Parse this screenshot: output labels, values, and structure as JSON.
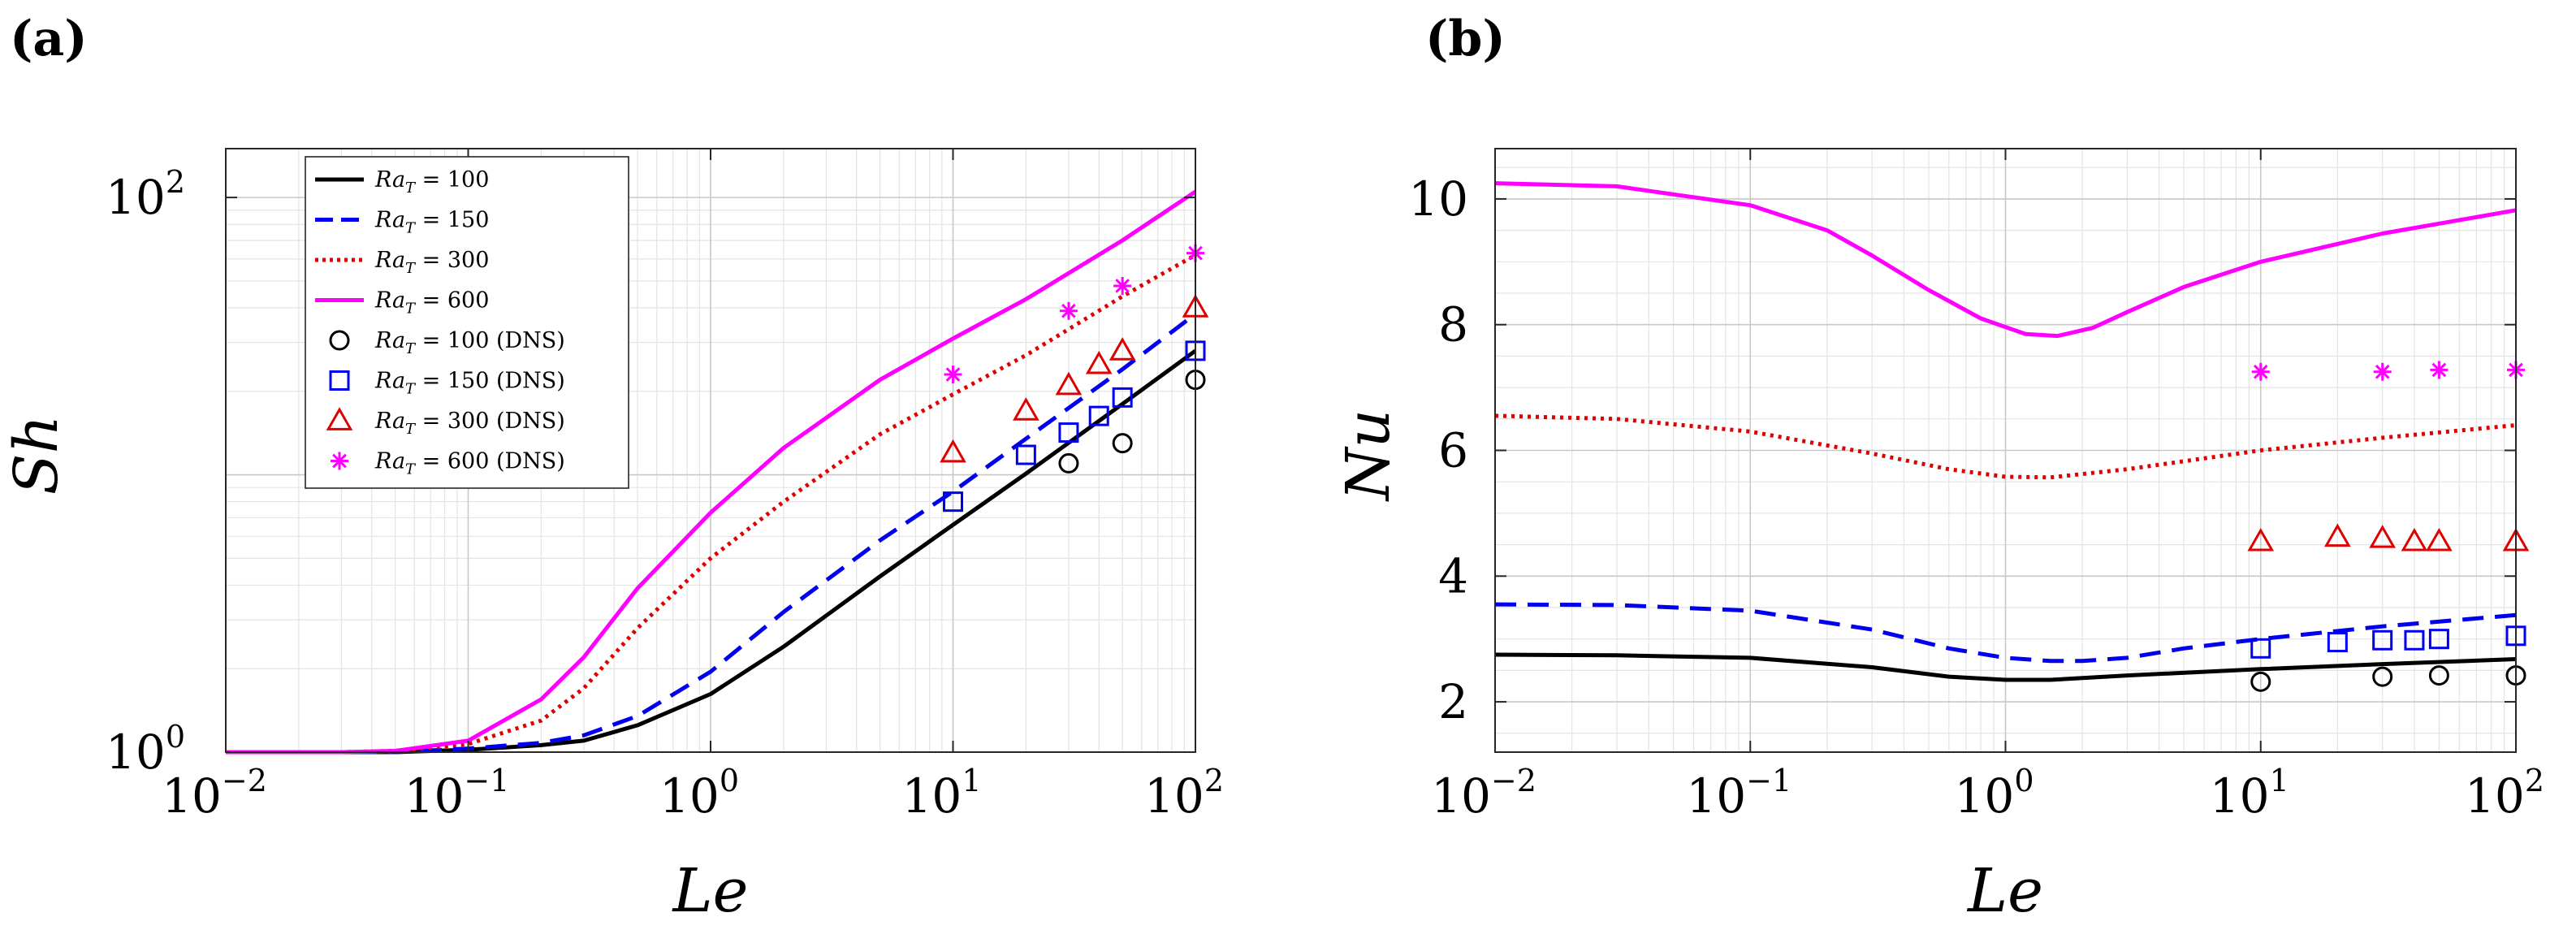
{
  "panels": {
    "a": {
      "label": "(a)"
    },
    "b": {
      "label": "(b)"
    }
  },
  "chart_data": [
    {
      "id": "a",
      "type": "line",
      "xscale": "log",
      "yscale": "log",
      "xlabel": "Le",
      "ylabel": "Sh",
      "xlim": [
        0.01,
        100
      ],
      "ylim": [
        1,
        150
      ],
      "xticks": [
        0.01,
        0.1,
        1,
        10,
        100
      ],
      "xtick_labels": [
        [
          "10",
          "−2"
        ],
        [
          "10",
          "−1"
        ],
        [
          "10",
          "0"
        ],
        [
          "10",
          "1"
        ],
        [
          "10",
          "2"
        ]
      ],
      "yticks": [
        1,
        100
      ],
      "ytick_labels": [
        [
          "10",
          "0"
        ],
        [
          "10",
          "2"
        ]
      ],
      "grid": true,
      "legend_position": "top-left",
      "series": [
        {
          "name": "Ra_T = 100",
          "legend_var": "Ra",
          "legend_sub": "T",
          "legend_rest": " = 100",
          "kind": "line",
          "style": "solid",
          "color": "#000000",
          "x": [
            0.01,
            0.03,
            0.05,
            0.1,
            0.2,
            0.3,
            0.5,
            1,
            2,
            5,
            10,
            20,
            50,
            100
          ],
          "y": [
            1.0,
            1.0,
            1.0,
            1.02,
            1.06,
            1.1,
            1.25,
            1.62,
            2.4,
            4.3,
            6.6,
            10.1,
            18.0,
            28.0
          ]
        },
        {
          "name": "Ra_T = 150",
          "legend_var": "Ra",
          "legend_sub": "T",
          "legend_rest": " = 150",
          "kind": "line",
          "style": "dashed",
          "color": "#0000ee",
          "x": [
            0.01,
            0.03,
            0.05,
            0.1,
            0.2,
            0.3,
            0.5,
            1,
            2,
            5,
            10,
            20,
            50,
            100
          ],
          "y": [
            1.0,
            1.0,
            1.0,
            1.03,
            1.08,
            1.15,
            1.35,
            1.95,
            3.2,
            5.8,
            8.7,
            13.5,
            24.0,
            38.0
          ]
        },
        {
          "name": "Ra_T = 300",
          "legend_var": "Ra",
          "legend_sub": "T",
          "legend_rest": " = 300",
          "kind": "line",
          "style": "dotted",
          "color": "#e00000",
          "x": [
            0.01,
            0.03,
            0.05,
            0.1,
            0.2,
            0.3,
            0.5,
            1,
            2,
            5,
            10,
            20,
            50,
            100
          ],
          "y": [
            1.0,
            1.0,
            1.01,
            1.07,
            1.3,
            1.7,
            2.8,
            5.0,
            8.0,
            14.0,
            19.5,
            27.0,
            44.0,
            62.0
          ]
        },
        {
          "name": "Ra_T = 600",
          "legend_var": "Ra",
          "legend_sub": "T",
          "legend_rest": " = 600",
          "kind": "line",
          "style": "solid",
          "color": "#ff00ff",
          "x": [
            0.01,
            0.03,
            0.05,
            0.1,
            0.2,
            0.3,
            0.5,
            1,
            2,
            5,
            10,
            20,
            50,
            100
          ],
          "y": [
            1.0,
            1.0,
            1.01,
            1.1,
            1.55,
            2.2,
            3.9,
            7.3,
            12.5,
            22.0,
            31.0,
            43.0,
            70.0,
            105.0
          ]
        },
        {
          "name": "Ra_T = 100 (DNS)",
          "legend_var": "Ra",
          "legend_sub": "T",
          "legend_rest": " = 100 (DNS)",
          "kind": "marker",
          "marker": "circle",
          "color": "#000000",
          "x": [
            30,
            50,
            100
          ],
          "y": [
            11.0,
            13.0,
            22.0
          ]
        },
        {
          "name": "Ra_T = 150 (DNS)",
          "legend_var": "Ra",
          "legend_sub": "T",
          "legend_rest": " = 150 (DNS)",
          "kind": "marker",
          "marker": "square",
          "color": "#0000ee",
          "x": [
            10,
            20,
            30,
            40,
            50,
            100
          ],
          "y": [
            8.0,
            11.8,
            14.2,
            16.3,
            19.0,
            28.0
          ]
        },
        {
          "name": "Ra_T = 300 (DNS)",
          "legend_var": "Ra",
          "legend_sub": "T",
          "legend_rest": " = 300 (DNS)",
          "kind": "marker",
          "marker": "triangle",
          "color": "#e00000",
          "x": [
            10,
            20,
            30,
            40,
            50,
            100
          ],
          "y": [
            12.0,
            17.0,
            21.0,
            25.0,
            28.0,
            40.0
          ]
        },
        {
          "name": "Ra_T = 600 (DNS)",
          "legend_var": "Ra",
          "legend_sub": "T",
          "legend_rest": " = 600 (DNS)",
          "kind": "marker",
          "marker": "asterisk",
          "color": "#ff00ff",
          "x": [
            10,
            30,
            50,
            100
          ],
          "y": [
            23.0,
            39.0,
            48.0,
            63.0
          ]
        }
      ]
    },
    {
      "id": "b",
      "type": "line",
      "xscale": "log",
      "yscale": "linear",
      "xlabel": "Le",
      "ylabel": "Nu",
      "xlim": [
        0.01,
        100
      ],
      "ylim": [
        1.2,
        10.8
      ],
      "xticks": [
        0.01,
        0.1,
        1,
        10,
        100
      ],
      "xtick_labels": [
        [
          "10",
          "−2"
        ],
        [
          "10",
          "−1"
        ],
        [
          "10",
          "0"
        ],
        [
          "10",
          "1"
        ],
        [
          "10",
          "2"
        ]
      ],
      "yticks": [
        2,
        4,
        6,
        8,
        10
      ],
      "ytick_labels": [
        [
          "2",
          ""
        ],
        [
          "4",
          ""
        ],
        [
          "6",
          ""
        ],
        [
          "8",
          ""
        ],
        [
          "10",
          ""
        ]
      ],
      "grid": true,
      "series": [
        {
          "name": "Ra_T = 100",
          "kind": "line",
          "style": "solid",
          "color": "#000000",
          "x": [
            0.01,
            0.03,
            0.1,
            0.3,
            0.6,
            1,
            1.5,
            3,
            10,
            30,
            100
          ],
          "y": [
            2.75,
            2.74,
            2.7,
            2.55,
            2.4,
            2.35,
            2.35,
            2.42,
            2.52,
            2.6,
            2.68
          ]
        },
        {
          "name": "Ra_T = 150",
          "kind": "line",
          "style": "dashed",
          "color": "#0000ee",
          "x": [
            0.01,
            0.03,
            0.1,
            0.3,
            0.6,
            1,
            1.5,
            2,
            3,
            5,
            10,
            30,
            100
          ],
          "y": [
            3.55,
            3.54,
            3.45,
            3.15,
            2.85,
            2.7,
            2.65,
            2.65,
            2.7,
            2.85,
            3.0,
            3.2,
            3.38
          ]
        },
        {
          "name": "Ra_T = 300",
          "kind": "line",
          "style": "dotted",
          "color": "#e00000",
          "x": [
            0.01,
            0.03,
            0.1,
            0.3,
            0.6,
            1,
            1.5,
            3,
            10,
            30,
            100
          ],
          "y": [
            6.55,
            6.5,
            6.3,
            5.95,
            5.7,
            5.58,
            5.57,
            5.7,
            6.0,
            6.2,
            6.4
          ]
        },
        {
          "name": "Ra_T = 600",
          "kind": "line",
          "style": "solid",
          "color": "#ff00ff",
          "x": [
            0.01,
            0.03,
            0.1,
            0.2,
            0.3,
            0.5,
            0.8,
            1.2,
            1.6,
            2.2,
            3,
            5,
            10,
            30,
            100
          ],
          "y": [
            10.25,
            10.2,
            9.9,
            9.5,
            9.1,
            8.55,
            8.1,
            7.85,
            7.82,
            7.95,
            8.2,
            8.6,
            9.0,
            9.45,
            9.82
          ]
        },
        {
          "name": "Ra_T = 100 (DNS)",
          "kind": "marker",
          "marker": "circle",
          "color": "#000000",
          "x": [
            10,
            30,
            50,
            100
          ],
          "y": [
            2.32,
            2.4,
            2.42,
            2.42
          ]
        },
        {
          "name": "Ra_T = 150 (DNS)",
          "kind": "marker",
          "marker": "square",
          "color": "#0000ee",
          "x": [
            10,
            20,
            30,
            40,
            50,
            100
          ],
          "y": [
            2.85,
            2.95,
            2.98,
            2.98,
            3.0,
            3.05
          ]
        },
        {
          "name": "Ra_T = 300 (DNS)",
          "kind": "marker",
          "marker": "triangle",
          "color": "#e00000",
          "x": [
            10,
            20,
            30,
            40,
            50,
            100
          ],
          "y": [
            4.55,
            4.62,
            4.6,
            4.55,
            4.55,
            4.55
          ]
        },
        {
          "name": "Ra_T = 600 (DNS)",
          "kind": "marker",
          "marker": "asterisk",
          "color": "#ff00ff",
          "x": [
            10,
            30,
            50,
            100
          ],
          "y": [
            7.25,
            7.25,
            7.28,
            7.28
          ]
        }
      ]
    }
  ]
}
